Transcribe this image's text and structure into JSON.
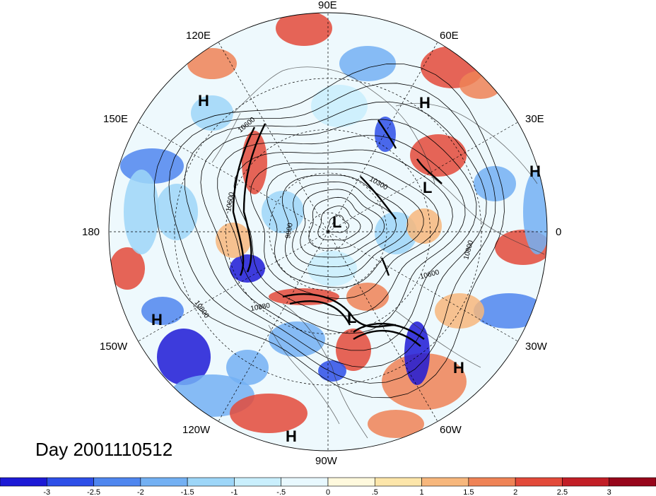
{
  "title": "Day 2001110512",
  "longitude_labels": [
    "90E",
    "60E",
    "30E",
    "0",
    "30W",
    "60W",
    "90W",
    "120W",
    "150W",
    "180",
    "150E",
    "120E"
  ],
  "pressure_systems": [
    {
      "type": "H",
      "lon_lat": [
        130,
        40
      ]
    },
    {
      "type": "H",
      "lon_lat": [
        60,
        45
      ]
    },
    {
      "type": "H",
      "lon_lat": [
        20,
        30
      ]
    },
    {
      "type": "L",
      "lon_lat": [
        25,
        60
      ]
    },
    {
      "type": "L",
      "lon_lat": [
        -150,
        85
      ]
    },
    {
      "type": "L",
      "lon_lat": [
        -80,
        60
      ]
    },
    {
      "type": "H",
      "lon_lat": [
        -160,
        25
      ]
    },
    {
      "type": "H",
      "lon_lat": [
        -40,
        25
      ]
    },
    {
      "type": "H",
      "lon_lat": [
        -95,
        10
      ]
    }
  ],
  "contour_labels": [
    "10600",
    "10600",
    "9800",
    "10300",
    "10600",
    "10800",
    "10800",
    "10880"
  ],
  "colorbar": {
    "ticks": [
      "-3",
      "-2.5",
      "-2",
      "-1.5",
      "-1",
      "-.5",
      "0",
      ".5",
      "1",
      "1.5",
      "2",
      "2.5",
      "3"
    ],
    "colors": [
      "#1d1ad6",
      "#2d4fe8",
      "#4f86ef",
      "#73b0f3",
      "#9dd6f8",
      "#c9effd",
      "#e8f8fe",
      "#fff9dd",
      "#fde6aa",
      "#f7b77c",
      "#ef8356",
      "#e34a3a",
      "#c21e26",
      "#97061b"
    ]
  }
}
